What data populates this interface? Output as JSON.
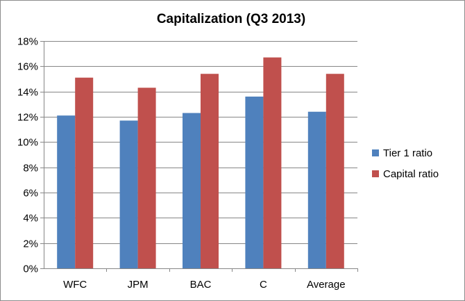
{
  "chart_data": {
    "type": "bar",
    "title": "Capitalization (Q3 2013)",
    "categories": [
      "WFC",
      "JPM",
      "BAC",
      "C",
      "Average"
    ],
    "series": [
      {
        "name": "Tier 1 ratio",
        "values": [
          12.1,
          11.7,
          12.3,
          13.6,
          12.4
        ],
        "color": "#4f81bd"
      },
      {
        "name": "Capital ratio",
        "values": [
          15.1,
          14.3,
          15.4,
          16.7,
          15.4
        ],
        "color": "#c0504d"
      }
    ],
    "ylim": [
      0,
      18
    ],
    "ytick_step": 2,
    "ytick_format": "percent",
    "grid": true,
    "legend_position": "right"
  }
}
